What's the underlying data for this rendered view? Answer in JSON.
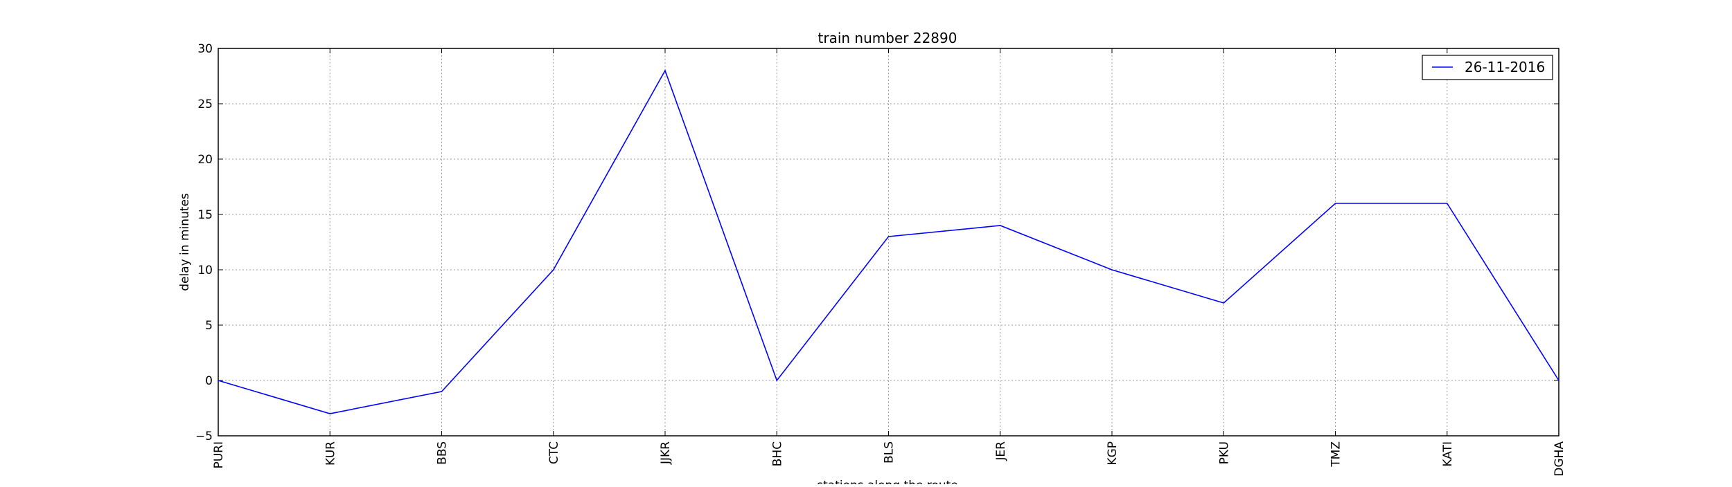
{
  "chart_data": {
    "type": "line",
    "title": "train number 22890",
    "xlabel": "stations along the route",
    "ylabel": "delay in minutes",
    "categories": [
      "PURI",
      "KUR",
      "BBS",
      "CTC",
      "JJKR",
      "BHC",
      "BLS",
      "JER",
      "KGP",
      "PKU",
      "TMZ",
      "KATI",
      "DGHA"
    ],
    "series": [
      {
        "name": "26-11-2016",
        "values": [
          0,
          -3,
          -1,
          10,
          28,
          0,
          13,
          14,
          10,
          7,
          16,
          16,
          0
        ],
        "color": "#0000ff"
      }
    ],
    "ylim": [
      -5,
      30
    ],
    "yticks": [
      -5,
      0,
      5,
      10,
      15,
      20,
      25,
      30
    ],
    "grid": true,
    "legend_position": "top-right"
  }
}
